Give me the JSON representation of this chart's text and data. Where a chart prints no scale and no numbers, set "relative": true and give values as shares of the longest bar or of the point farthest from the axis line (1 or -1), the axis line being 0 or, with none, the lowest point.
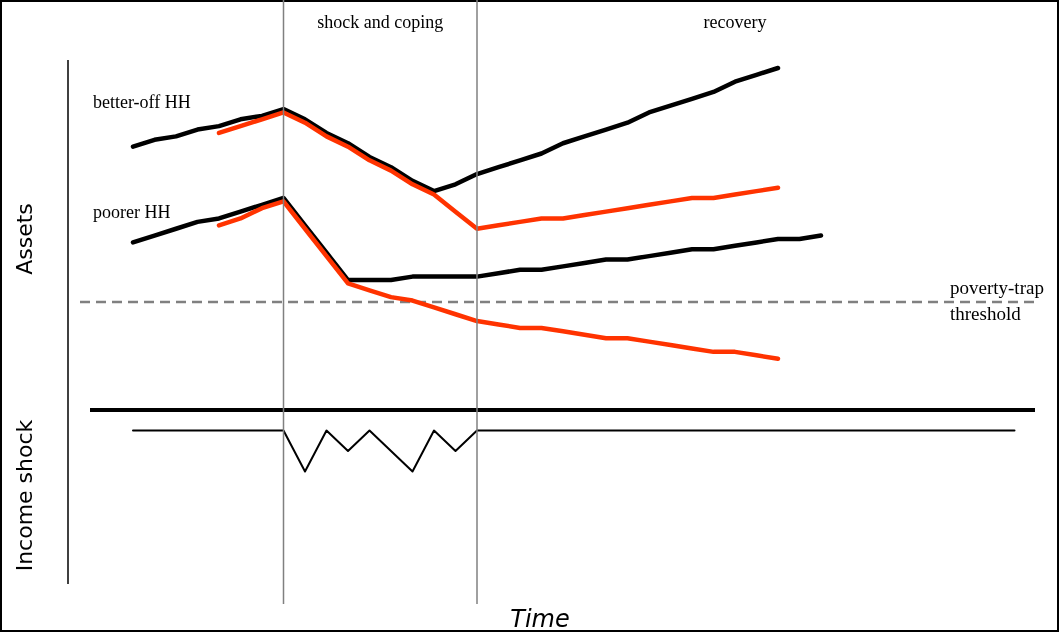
{
  "chart_data": {
    "type": "line",
    "relative": true,
    "ylabel": "Assets",
    "legend": false,
    "grid": false,
    "line_style": "solid",
    "marker": "none",
    "categories": [
      null,
      null,
      null,
      null,
      null,
      null,
      null,
      null,
      null,
      null,
      null,
      null,
      null,
      null,
      null,
      null,
      null,
      null,
      null,
      null,
      null,
      null,
      null,
      null,
      null,
      null,
      null,
      null,
      null,
      null,
      null,
      null,
      null,
      null,
      null,
      null,
      null,
      null,
      null,
      null,
      null,
      null
    ],
    "series": [
      {
        "color": "#000000",
        "values": [
          0.77,
          0.79,
          0.8,
          0.82,
          0.83,
          0.85,
          0.86,
          0.88,
          0.85,
          0.81,
          0.78,
          0.74,
          0.71,
          0.67,
          0.64,
          0.66,
          0.69,
          0.71,
          0.73,
          0.75,
          0.78,
          0.8,
          0.82,
          0.84,
          0.87,
          0.89,
          0.91,
          0.93,
          0.96,
          0.98,
          1.0,
          null,
          null,
          null,
          null,
          null,
          null,
          null,
          null,
          null,
          null,
          null
        ]
      },
      {
        "color": "#ff3300",
        "values": [
          null,
          null,
          null,
          null,
          0.81,
          0.83,
          0.85,
          0.87,
          0.84,
          0.8,
          0.77,
          0.73,
          0.7,
          0.66,
          0.63,
          0.58,
          0.53,
          0.54,
          0.55,
          0.56,
          0.56,
          0.57,
          0.58,
          0.59,
          0.6,
          0.61,
          0.62,
          0.62,
          0.63,
          0.64,
          0.65,
          null,
          null,
          null,
          null,
          null,
          null,
          null,
          null,
          null,
          null,
          null
        ]
      },
      {
        "color": "#000000",
        "values": [
          0.49,
          0.51,
          0.53,
          0.55,
          0.56,
          0.58,
          0.6,
          0.62,
          0.54,
          0.46,
          0.38,
          0.38,
          0.38,
          0.39,
          0.39,
          0.39,
          0.39,
          0.4,
          0.41,
          0.41,
          0.42,
          0.43,
          0.44,
          0.44,
          0.45,
          0.46,
          0.47,
          0.47,
          0.48,
          0.49,
          0.5,
          0.5,
          0.51,
          null,
          null,
          null,
          null,
          null,
          null,
          null,
          null,
          null
        ]
      },
      {
        "color": "#ff3300",
        "values": [
          null,
          null,
          null,
          null,
          0.54,
          0.56,
          0.59,
          0.61,
          0.53,
          0.45,
          0.37,
          0.35,
          0.33,
          0.32,
          0.3,
          0.28,
          0.26,
          0.25,
          0.24,
          0.24,
          0.23,
          0.22,
          0.21,
          0.21,
          0.2,
          0.19,
          0.18,
          0.17,
          0.17,
          0.16,
          0.15,
          null,
          null,
          null,
          null,
          null,
          null,
          null,
          null,
          null,
          null,
          null
        ]
      },
      {
        "color": "#000000",
        "values": [
          -0.06,
          -0.06,
          -0.06,
          -0.06,
          -0.06,
          -0.06,
          -0.06,
          -0.06,
          -0.18,
          -0.06,
          -0.12,
          -0.06,
          -0.12,
          -0.18,
          -0.06,
          -0.12,
          -0.06,
          -0.06,
          -0.06,
          -0.06,
          -0.06,
          -0.06,
          -0.06,
          -0.06,
          -0.06,
          -0.06,
          -0.06,
          -0.06,
          -0.06,
          -0.06,
          -0.06,
          -0.06,
          -0.06,
          -0.06,
          -0.06,
          -0.06,
          -0.06,
          -0.06,
          -0.06,
          -0.06,
          -0.06,
          -0.06
        ]
      }
    ],
    "ref_lines": [
      {
        "axis": "y",
        "value": 0.316,
        "label": "poverty-trap threshold",
        "color": "#808080",
        "line_style": "dashed"
      }
    ],
    "annotations": [
      "better-off HH",
      "poorer HH",
      "shock and coping",
      "recovery",
      "Income shock",
      "Time"
    ]
  }
}
